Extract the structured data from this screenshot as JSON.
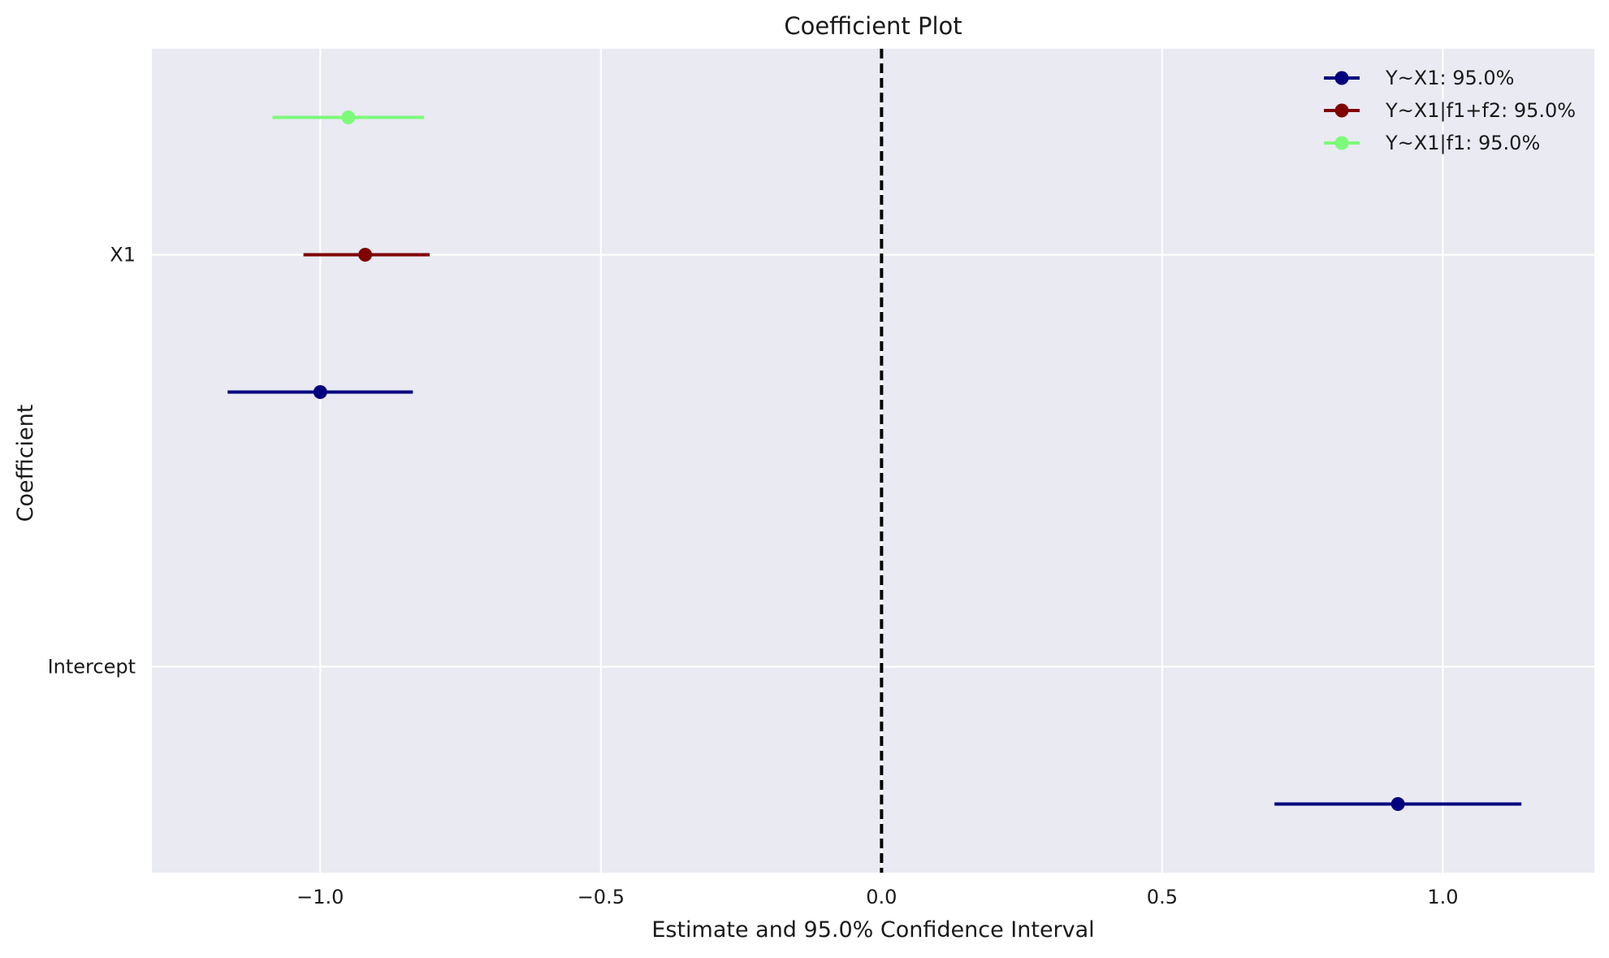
{
  "chart_data": {
    "type": "coefficient_plot",
    "title": "Coefficient Plot",
    "xlabel": "Estimate and 95.0% Confidence Interval",
    "ylabel": "Coefficient",
    "xlim": [
      -1.3,
      1.27
    ],
    "x_ticks": [
      -1.0,
      -0.5,
      0.0,
      0.5,
      1.0
    ],
    "x_tick_labels": [
      "−1.0",
      "−0.5",
      "0.0",
      "0.5",
      "1.0"
    ],
    "categories": [
      "Intercept",
      "X1"
    ],
    "reference_line": {
      "x": 0.0,
      "style": "dashed",
      "color": "#000000"
    },
    "grid": true,
    "legend": "top-right",
    "background": "#e9eaf2",
    "series": [
      {
        "name": "Y~X1: 95.0%",
        "color": "#00007f",
        "points": [
          {
            "coefficient": "Intercept",
            "estimate": 0.92,
            "ci_low": 0.7,
            "ci_high": 1.14
          },
          {
            "coefficient": "X1",
            "estimate": -1.0,
            "ci_low": -1.165,
            "ci_high": -0.835
          }
        ]
      },
      {
        "name": "Y~X1|f1+f2: 95.0%",
        "color": "#7f0000",
        "points": [
          {
            "coefficient": "X1",
            "estimate": -0.92,
            "ci_low": -1.03,
            "ci_high": -0.805
          }
        ]
      },
      {
        "name": "Y~X1|f1: 95.0%",
        "color": "#7dfa7a",
        "points": [
          {
            "coefficient": "X1",
            "estimate": -0.95,
            "ci_low": -1.085,
            "ci_high": -0.815
          }
        ]
      }
    ]
  }
}
